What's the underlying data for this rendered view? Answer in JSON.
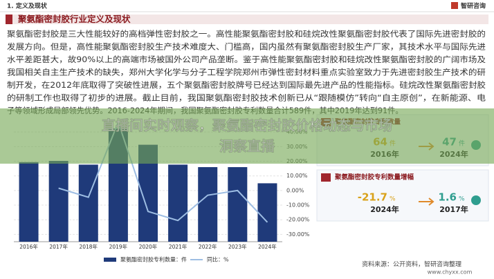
{
  "header": {
    "section": "1. 定义及现状",
    "brand": "智研咨询",
    "title": "聚氨酯密封胶行业定义及现状"
  },
  "body": {
    "paragraph_lines": [
      "聚氨酯密封胶是三大性能较好的高档弹性密封胶之一。高性能聚氨酯密封胶和硅烷改性聚氨酯密封胶代表了国际先进密封胶的",
      "发展方向。但是，高性能聚氨酯密封胶生产技术难度大、门槛高，国内虽然有聚氨酯密封胶生产厂家，其技术水平与国际先进",
      "水平差距甚大，故90%以上的高端市场被国外公司产品垄断。鉴于高性能聚氨酯密封胶和硅烷改性聚氨酯密封胶的广阔市场及",
      "我国相关自主生产技术的缺失，郑州大学化学与分子工程学院郑州市弹性密封材料重点实验室致力于先进密封胶生产技术的研",
      "制开发，在2012年底取得了突破性进展，五个聚氨酯密封胶牌号已经达到国际最先进产品的性能指标。硅烷改性聚氨酯密封胶",
      "的研制工作也取得了初步的进展。截止目前，我国聚氨酯密封胶技术创新已从“跟随模仿”转向“自主原创”，在新能源、电",
      "子等领域形成局部领先优势。2016-2024年期间，我国聚氨酯密封胶专利数量合计589件，其中2019年达到91件。"
    ]
  },
  "overlay": {
    "headline_lines": [
      "直播间实时观察，聚氨酯密封胶价格动态与市场",
      "洞察直播"
    ]
  },
  "chart_data": {
    "type": "bar_line",
    "categories": [
      "2016年",
      "2017年",
      "2018年",
      "2019年",
      "2020年",
      "2021年",
      "2022年",
      "2023年",
      "2024年"
    ],
    "series": [
      {
        "name": "聚氨酯密封胶专利数量：件",
        "type": "bar",
        "color": "#1f3a7a",
        "values": [
          64,
          65,
          62,
          91,
          78,
          62,
          60,
          60,
          47
        ]
      },
      {
        "name": "同比：%",
        "type": "line",
        "axis": "y2",
        "color": "#9dbde3",
        "values": [
          null,
          1.6,
          -4.6,
          46.8,
          -14.3,
          -20.5,
          -3.2,
          0,
          -21.7
        ]
      }
    ],
    "ylim": [
      0,
      100
    ],
    "y2lim": [
      -35,
      50
    ],
    "y2ticks": [
      {
        "value": -30,
        "label": "-30.00%"
      },
      {
        "value": -20,
        "label": "-20.00%"
      },
      {
        "value": -10,
        "label": "-10.00%"
      },
      {
        "value": 0,
        "label": "0.00%"
      },
      {
        "value": 10,
        "label": "10.00%"
      },
      {
        "value": 20,
        "label": "20.00%"
      },
      {
        "value": 30,
        "label": "30.00%"
      },
      {
        "value": 40,
        "label": "40.00%"
      }
    ],
    "grid": true
  },
  "panels": [
    {
      "title": "聚氨酯密封胶专利数量",
      "items": [
        {
          "value": "64",
          "unit": "件",
          "year": "2016年"
        },
        {
          "value": "47",
          "unit": "件",
          "year": "2024年"
        }
      ]
    },
    {
      "title": "聚氨酯密封胶专利数量增幅",
      "items": [
        {
          "value": "-21.7",
          "unit": "%",
          "year": "2024年"
        },
        {
          "value": "1.6",
          "unit": "%",
          "year": "2017年"
        }
      ]
    }
  ],
  "footer": {
    "source": "资料来源：公开资料，智研咨询整理",
    "site": "www.chyxx.com"
  }
}
